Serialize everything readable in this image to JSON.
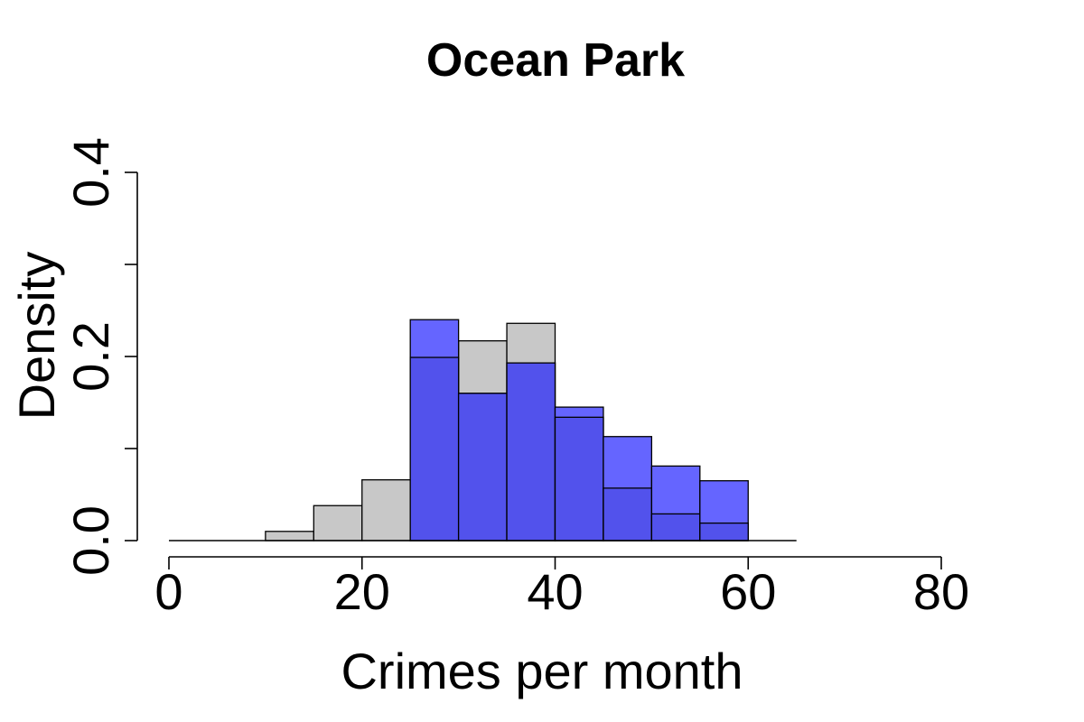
{
  "chart_data": {
    "type": "bar",
    "title": "Ocean Park",
    "xlabel": "Crimes per month",
    "ylabel": "Density",
    "xlim": [
      0,
      80
    ],
    "ylim": [
      0,
      0.4
    ],
    "x_ticks": [
      "0",
      "20",
      "40",
      "60",
      "80"
    ],
    "y_ticks": [
      "0.0",
      "0.2",
      "0.4"
    ],
    "bin_width": 5,
    "series": [
      {
        "color": "#c8c8c8",
        "bin_starts": [
          0,
          5,
          10,
          15,
          20,
          25,
          30,
          35,
          40,
          45,
          50,
          55,
          60
        ],
        "values": [
          0.0,
          0.0,
          0.01,
          0.038,
          0.066,
          0.199,
          0.217,
          0.236,
          0.134,
          0.057,
          0.029,
          0.019,
          0.0
        ]
      },
      {
        "color": "#6565ff",
        "bin_starts": [
          25,
          30,
          35,
          40,
          45,
          50,
          55
        ],
        "values": [
          0.24,
          0.16,
          0.193,
          0.145,
          0.113,
          0.081,
          0.065
        ]
      }
    ],
    "overlap_color": "#5252ec",
    "grid": false,
    "legend": "none"
  }
}
